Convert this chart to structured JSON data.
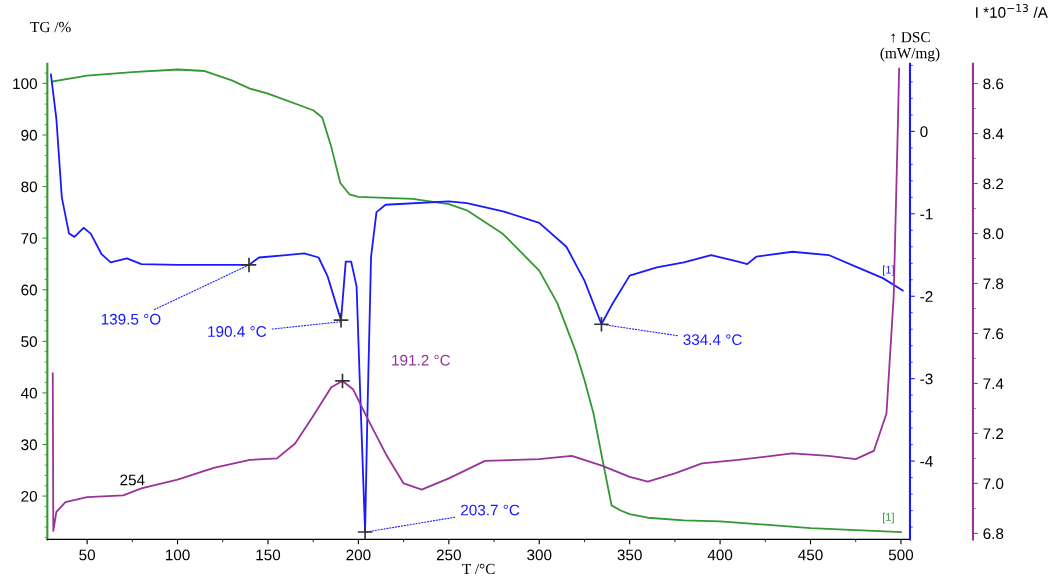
{
  "chart_data": {
    "type": "line",
    "xlabel": "T /°C",
    "ylabel": "TG /%",
    "y2label": "↑ DSC\n(mW/mg)",
    "y3label": "I *10$^{−13}$ /A",
    "xlim": [
      28,
      505
    ],
    "xticks": [
      50,
      100,
      150,
      200,
      250,
      300,
      350,
      400,
      450,
      500
    ],
    "ylim": [
      11.6,
      103.8
    ],
    "yticks": [
      20,
      30,
      40,
      50,
      60,
      70,
      80,
      90,
      100
    ],
    "y2lim": [
      -4.95,
      0.82
    ],
    "y2ticks": [
      -4,
      -3,
      -2,
      -1,
      0
    ],
    "y3lim": [
      6.776,
      8.679
    ],
    "y3ticks": [
      6.8,
      {
        "value": 7.0,
        "label": "7.0"
      },
      7.2,
      7.4,
      7.6,
      7.8,
      {
        "value": 8.0,
        "label": "8.0"
      },
      8.2,
      8.4,
      8.6
    ],
    "grid": false,
    "legend": false,
    "line_style": "solid",
    "series": [
      {
        "color": "#339933",
        "x": [
          31,
          50,
          75,
          100,
          115,
          130,
          140,
          150,
          175,
          180,
          185,
          190,
          195,
          200,
          230,
          250,
          260,
          280,
          300,
          310,
          320,
          325,
          330,
          335,
          340,
          345,
          350,
          360,
          380,
          400,
          450,
          500
        ],
        "values": [
          100.4,
          101.5,
          102.2,
          102.7,
          102.4,
          100.6,
          99,
          98,
          94.8,
          93.4,
          87.7,
          80.7,
          78.5,
          78,
          77.6,
          76.6,
          75.4,
          70.8,
          63.7,
          57.4,
          48.2,
          42.5,
          36,
          27,
          18.2,
          17.2,
          16.5,
          15.8,
          15.3,
          15.1,
          13.8,
          13.0
        ]
      },
      {
        "color": "#1a1aff",
        "axis": "y2",
        "x": [
          30,
          33,
          36,
          40,
          43,
          48,
          52,
          58,
          63,
          72,
          80,
          100,
          130,
          139.5,
          145,
          160,
          170,
          178,
          183,
          187,
          190.4,
          193,
          196,
          199,
          201,
          203.7,
          205,
          207,
          210,
          215,
          250,
          260,
          280,
          300,
          315,
          325,
          334.4,
          340,
          350,
          365,
          380,
          395,
          410,
          415,
          420,
          440,
          460,
          475,
          490,
          501
        ],
        "values": [
          0.69,
          0.15,
          -0.8,
          -1.24,
          -1.28,
          -1.17,
          -1.24,
          -1.49,
          -1.59,
          -1.54,
          -1.61,
          -1.62,
          -1.62,
          -1.62,
          -1.53,
          -1.5,
          -1.48,
          -1.53,
          -1.76,
          -2.05,
          -2.29,
          -1.58,
          -1.58,
          -1.88,
          -3.18,
          -4.86,
          -3.42,
          -1.52,
          -0.98,
          -0.89,
          -0.85,
          -0.87,
          -0.97,
          -1.11,
          -1.4,
          -1.81,
          -2.34,
          -2.11,
          -1.75,
          -1.65,
          -1.59,
          -1.5,
          -1.58,
          -1.61,
          -1.52,
          -1.46,
          -1.5,
          -1.64,
          -1.78,
          -1.93
        ]
      },
      {
        "color": "#993399",
        "axis": "y3",
        "x": [
          31,
          31.3,
          33,
          38,
          50,
          70,
          80,
          100,
          120,
          140,
          155,
          165,
          175,
          185,
          191.2,
          197,
          205,
          215,
          225,
          235,
          250,
          270,
          300,
          318,
          335,
          350,
          360,
          375,
          390,
          410,
          440,
          460,
          475,
          485,
          492,
          496,
          498,
          499
        ],
        "values": [
          7.44,
          6.81,
          6.886,
          6.925,
          6.945,
          6.952,
          6.98,
          7.015,
          7.062,
          7.094,
          7.1,
          7.16,
          7.27,
          7.385,
          7.41,
          7.377,
          7.26,
          7.12,
          7.0,
          6.975,
          7.02,
          7.09,
          7.097,
          7.11,
          7.07,
          7.026,
          7.007,
          7.04,
          7.08,
          7.094,
          7.12,
          7.11,
          7.097,
          7.13,
          7.28,
          7.75,
          8.34,
          8.66
        ]
      },
      {
        "type": "scatter",
        "color": "#333333",
        "axis": "y2",
        "marker": "cross",
        "x": [
          139.5,
          190.4,
          203.7,
          334.4
        ],
        "values": [
          -1.62,
          -2.29,
          -4.86,
          -2.34
        ]
      },
      {
        "type": "scatter",
        "color": "#333333",
        "axis": "y3",
        "marker": "cross",
        "x": [
          191.2
        ],
        "values": [
          7.41
        ]
      }
    ],
    "annotations": [
      {
        "text": "139.5 °O",
        "x": 139.5,
        "y": 64.8
      },
      {
        "text": "190.4 °C",
        "x": 190.4,
        "y": 53.8
      },
      {
        "text": "203.7 °C",
        "x": 203.7,
        "y": 13.0
      },
      {
        "text": "334.4 °C",
        "x": 334.4,
        "y": 53.3
      },
      {
        "text": "254",
        "x": 75,
        "y": 21.8
      },
      "191.2 °C",
      "[1]",
      "[1]"
    ]
  }
}
